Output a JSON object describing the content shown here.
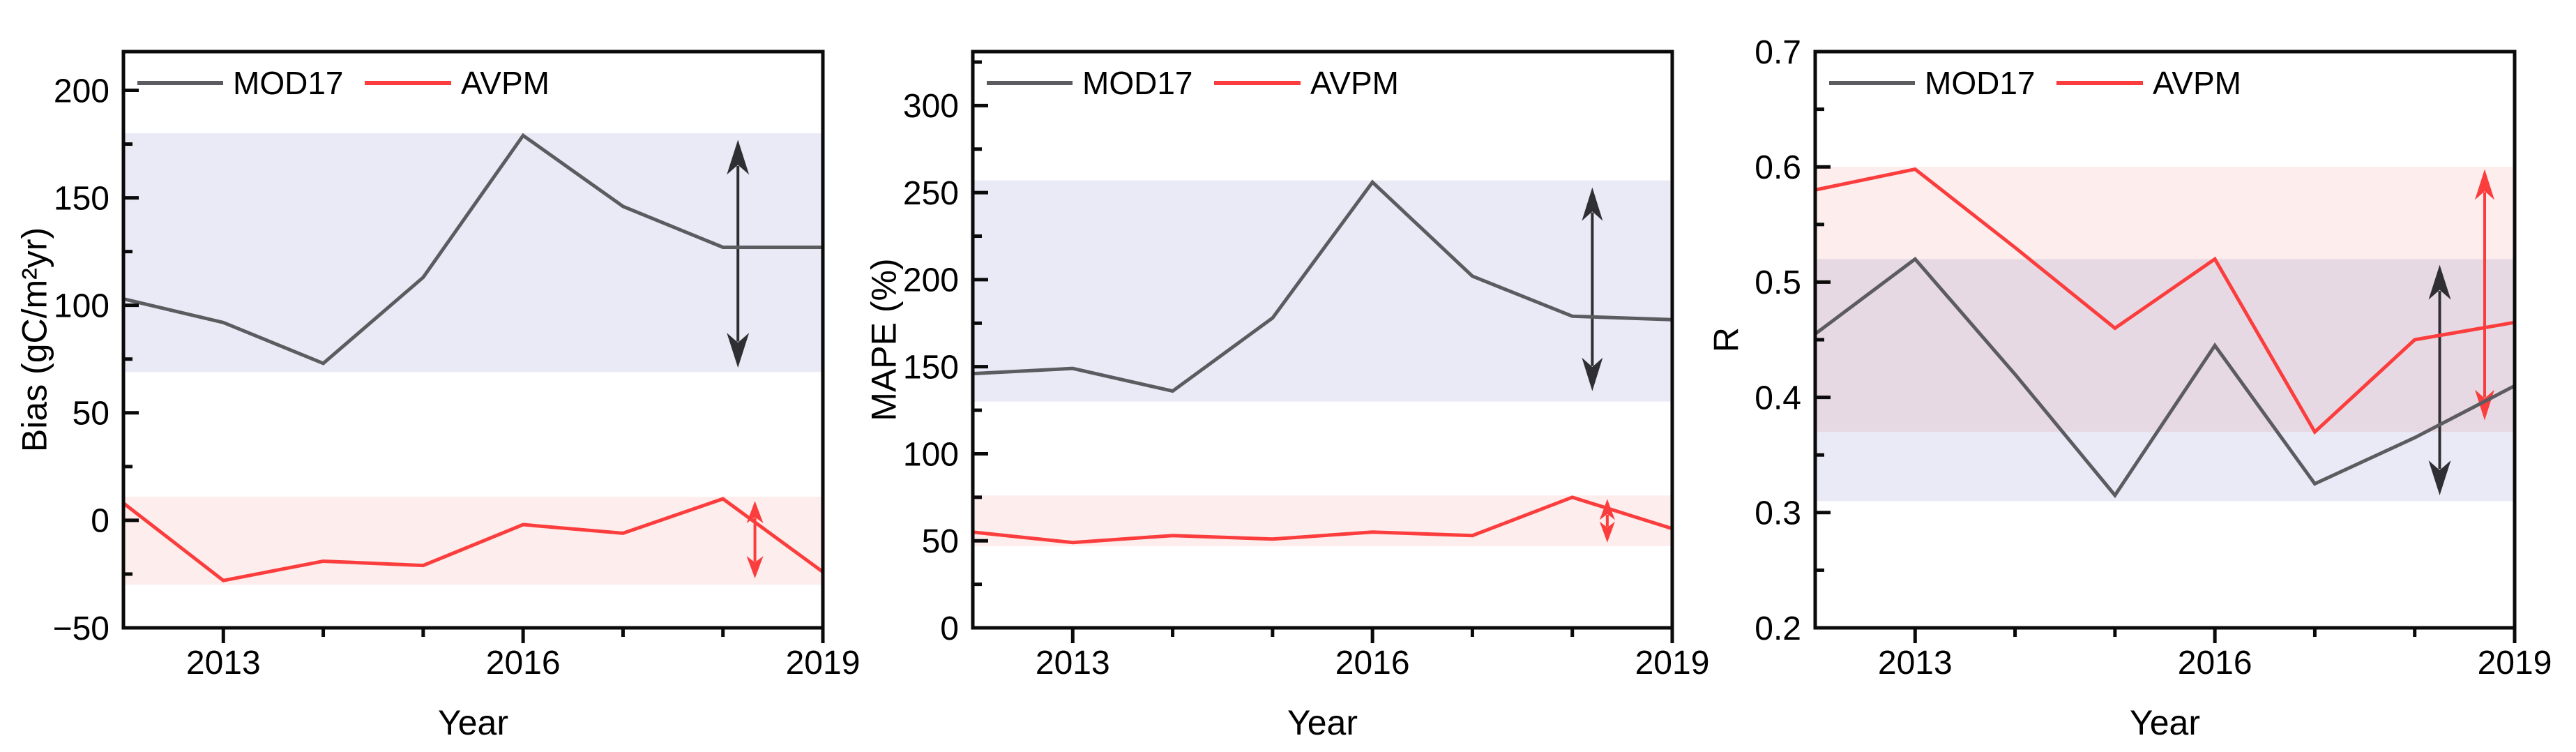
{
  "figure": {
    "kind": "three-panel line figure",
    "x_axis_title": "Year"
  },
  "chart_data": [
    {
      "type": "line",
      "panel": "left",
      "title": "",
      "xlabel": "Year",
      "ylabel": "Bias (gC/m²yr)",
      "x": [
        2012,
        2013,
        2014,
        2015,
        2016,
        2017,
        2018,
        2019
      ],
      "xlim": [
        2012,
        2019
      ],
      "ylim": [
        -50,
        218
      ],
      "grid": false,
      "legend_position": "top-left-inside",
      "xticks": {
        "major": [
          2013,
          2016,
          2019
        ],
        "labels": [
          "2013",
          "2016",
          "2019"
        ],
        "minor": [
          2014,
          2015,
          2017,
          2018
        ]
      },
      "yticks": {
        "major": [
          -50,
          0,
          50,
          100,
          150,
          200
        ],
        "labels": [
          "−50",
          "0",
          "50",
          "100",
          "150",
          "200"
        ],
        "minor": [
          -25,
          25,
          75,
          125,
          175
        ]
      },
      "series": [
        {
          "name": "MOD17",
          "color": "#5b5b60",
          "values": [
            103,
            92,
            73,
            113,
            179,
            146,
            127,
            127
          ]
        },
        {
          "name": "AVPM",
          "color": "#fb3d3d",
          "values": [
            8,
            -28,
            -19,
            -21,
            -2,
            -6,
            10,
            -24
          ]
        }
      ],
      "bands": [
        {
          "name": "mod17-range-band",
          "color": "#e9eaf6",
          "from": 69,
          "to": 180
        },
        {
          "name": "avpm-range-band",
          "color": "#fdedec",
          "from": -30,
          "to": 11
        }
      ],
      "arrows": [
        {
          "name": "mod17-range-arrow",
          "color": "#2f2f33",
          "x": 2018.15,
          "from": 71,
          "to": 177,
          "head_l": 50,
          "head_w": 16,
          "sw": 4
        },
        {
          "name": "avpm-range-arrow",
          "color": "#fb3d3d",
          "x": 2018.32,
          "from": -27,
          "to": 9,
          "head_l": 32,
          "head_w": 12,
          "sw": 4
        }
      ]
    },
    {
      "type": "line",
      "panel": "middle",
      "title": "",
      "xlabel": "Year",
      "ylabel": "MAPE (%)",
      "x": [
        2012,
        2013,
        2014,
        2015,
        2016,
        2017,
        2018,
        2019
      ],
      "xlim": [
        2012,
        2019
      ],
      "ylim": [
        0,
        331
      ],
      "grid": false,
      "legend_position": "top-left-inside",
      "xticks": {
        "major": [
          2013,
          2016,
          2019
        ],
        "labels": [
          "2013",
          "2016",
          "2019"
        ],
        "minor": [
          2014,
          2015,
          2017,
          2018
        ]
      },
      "yticks": {
        "major": [
          0,
          50,
          100,
          150,
          200,
          250,
          300
        ],
        "labels": [
          "0",
          "50",
          "100",
          "150",
          "200",
          "250",
          "300"
        ],
        "minor": [
          25,
          75,
          125,
          175,
          225,
          275,
          325
        ]
      },
      "series": [
        {
          "name": "MOD17",
          "color": "#5b5b60",
          "values": [
            146,
            149,
            136,
            178,
            256,
            202,
            179,
            177
          ]
        },
        {
          "name": "AVPM",
          "color": "#fb3d3d",
          "values": [
            55,
            49,
            53,
            51,
            55,
            53,
            75,
            57
          ]
        }
      ],
      "bands": [
        {
          "name": "mod17-range-band",
          "color": "#e9eaf6",
          "from": 130,
          "to": 257
        },
        {
          "name": "avpm-range-band",
          "color": "#fdedec",
          "from": 47,
          "to": 76
        }
      ],
      "arrows": [
        {
          "name": "mod17-range-arrow",
          "color": "#2f2f33",
          "x": 2018.2,
          "from": 136,
          "to": 253,
          "head_l": 48,
          "head_w": 15,
          "sw": 4
        },
        {
          "name": "avpm-range-arrow",
          "color": "#fb3d3d",
          "x": 2018.35,
          "from": 49,
          "to": 74,
          "head_l": 30,
          "head_w": 11,
          "sw": 4
        }
      ]
    },
    {
      "type": "line",
      "panel": "right",
      "title": "",
      "xlabel": "Year",
      "ylabel": "R",
      "x": [
        2012,
        2013,
        2014,
        2015,
        2016,
        2017,
        2018,
        2019
      ],
      "xlim": [
        2012,
        2019
      ],
      "ylim": [
        0.2,
        0.7
      ],
      "grid": false,
      "legend_position": "top-left-inside",
      "xticks": {
        "major": [
          2013,
          2016,
          2019
        ],
        "labels": [
          "2013",
          "2016",
          "2019"
        ],
        "minor": [
          2014,
          2015,
          2017,
          2018
        ]
      },
      "yticks": {
        "major": [
          0.2,
          0.3,
          0.4,
          0.5,
          0.6,
          0.7
        ],
        "labels": [
          "0.2",
          "0.3",
          "0.4",
          "0.5",
          "0.6",
          "0.7"
        ],
        "minor": [
          0.25,
          0.35,
          0.45,
          0.55,
          0.65
        ]
      },
      "series": [
        {
          "name": "MOD17",
          "color": "#5b5b60",
          "values": [
            0.455,
            0.52,
            0.42,
            0.315,
            0.445,
            0.325,
            0.365,
            0.41
          ]
        },
        {
          "name": "AVPM",
          "color": "#fb3d3d",
          "values": [
            0.58,
            0.598,
            0.53,
            0.46,
            0.52,
            0.37,
            0.45,
            0.465
          ]
        }
      ],
      "bands": [
        {
          "name": "mod17-range-band",
          "color": "#e9eaf6",
          "from": 0.31,
          "to": 0.52
        },
        {
          "name": "avpm-range-band",
          "color": "#fdedec",
          "from": 0.37,
          "to": 0.6
        }
      ],
      "arrows": [
        {
          "name": "mod17-range-arrow",
          "color": "#2f2f33",
          "x": 2018.25,
          "from": 0.315,
          "to": 0.515,
          "head_l": 50,
          "head_w": 16,
          "sw": 4
        },
        {
          "name": "avpm-range-arrow",
          "color": "#fb3d3d",
          "x": 2018.7,
          "from": 0.38,
          "to": 0.598,
          "head_l": 44,
          "head_w": 14,
          "sw": 4
        }
      ]
    }
  ]
}
